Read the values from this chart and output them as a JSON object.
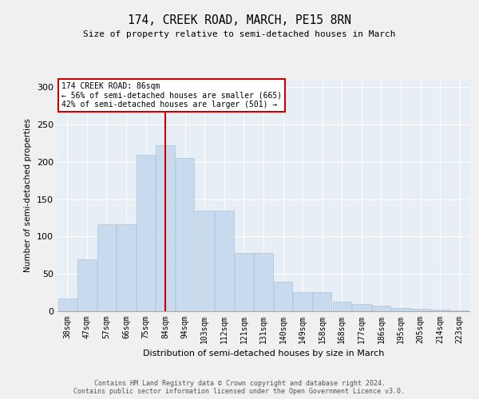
{
  "title": "174, CREEK ROAD, MARCH, PE15 8RN",
  "subtitle": "Size of property relative to semi-detached houses in March",
  "xlabel": "Distribution of semi-detached houses by size in March",
  "ylabel": "Number of semi-detached properties",
  "categories": [
    "38sqm",
    "47sqm",
    "57sqm",
    "66sqm",
    "75sqm",
    "84sqm",
    "94sqm",
    "103sqm",
    "112sqm",
    "121sqm",
    "131sqm",
    "140sqm",
    "149sqm",
    "158sqm",
    "168sqm",
    "177sqm",
    "186sqm",
    "195sqm",
    "205sqm",
    "214sqm",
    "223sqm"
  ],
  "values": [
    17,
    70,
    117,
    117,
    209,
    222,
    205,
    135,
    135,
    78,
    78,
    40,
    26,
    26,
    13,
    10,
    7,
    4,
    3,
    2,
    1
  ],
  "bar_color": "#c8daed",
  "bar_edge_color": "#a8c4dc",
  "vline_color": "#cc0000",
  "vline_index": 5,
  "annotation_title": "174 CREEK ROAD: 86sqm",
  "annotation_line1": "← 56% of semi-detached houses are smaller (665)",
  "annotation_line2": "42% of semi-detached houses are larger (501) →",
  "annotation_box_edgecolor": "#cc0000",
  "ylim": [
    0,
    310
  ],
  "yticks": [
    0,
    50,
    100,
    150,
    200,
    250,
    300
  ],
  "background_color": "#e8eef5",
  "grid_color": "#ffffff",
  "fig_background": "#f0f0f0",
  "footer1": "Contains HM Land Registry data © Crown copyright and database right 2024.",
  "footer2": "Contains public sector information licensed under the Open Government Licence v3.0."
}
